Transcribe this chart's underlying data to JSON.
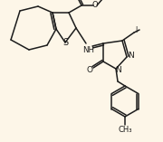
{
  "bg_color": "#fdf6e8",
  "line_color": "#1c1c1c",
  "lw": 1.1,
  "figsize": [
    1.8,
    1.57
  ],
  "dpi": 100,
  "xlim": [
    0,
    180
  ],
  "ylim": [
    0,
    157
  ]
}
